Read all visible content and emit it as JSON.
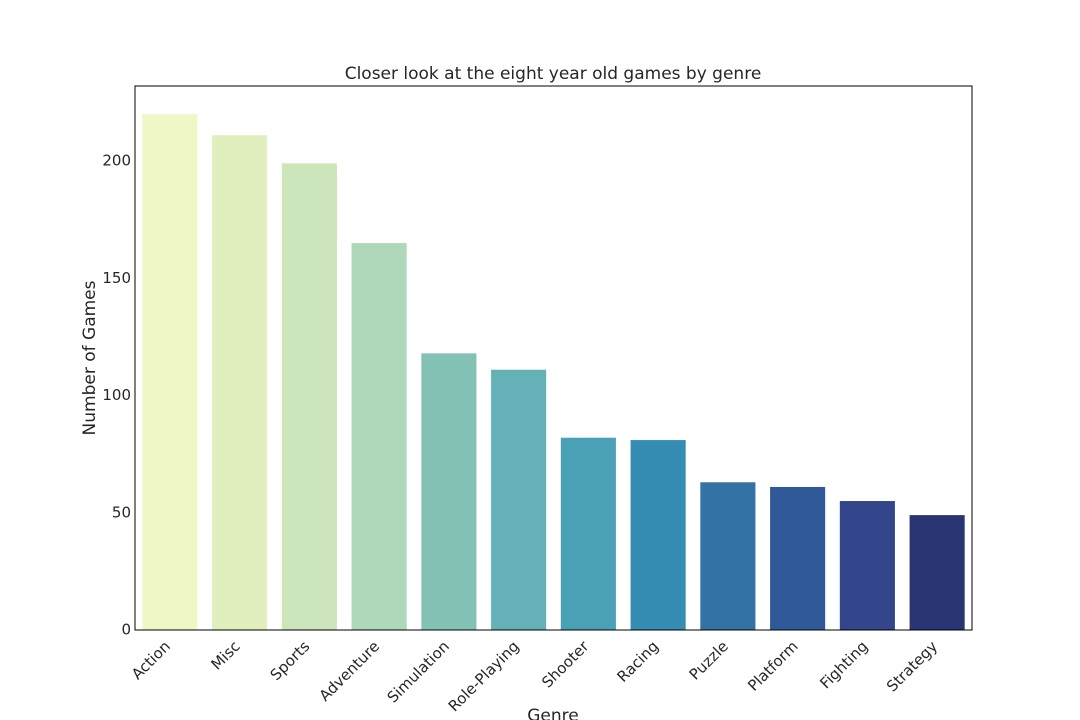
{
  "chart_data": {
    "type": "bar",
    "title": "Closer look at the eight year old games by genre",
    "x_label": "Genre",
    "y_label": "Number of Games",
    "categories": [
      "Action",
      "Misc",
      "Sports",
      "Adventure",
      "Simulation",
      "Role-Playing",
      "Shooter",
      "Racing",
      "Puzzle",
      "Platform",
      "Fighting",
      "Strategy"
    ],
    "values": [
      220,
      211,
      199,
      165,
      118,
      111,
      82,
      81,
      63,
      61,
      55,
      49
    ],
    "colors": [
      "#eff7c7",
      "#e1eebd",
      "#cde5bb",
      "#afd7ba",
      "#84c2b6",
      "#64b2b7",
      "#4aa1b6",
      "#368db4",
      "#3272a4",
      "#30599a",
      "#34468b",
      "#293572"
    ],
    "ylim": [
      0,
      232
    ],
    "yticks": [
      0,
      50,
      100,
      150,
      200
    ],
    "grid": false
  }
}
